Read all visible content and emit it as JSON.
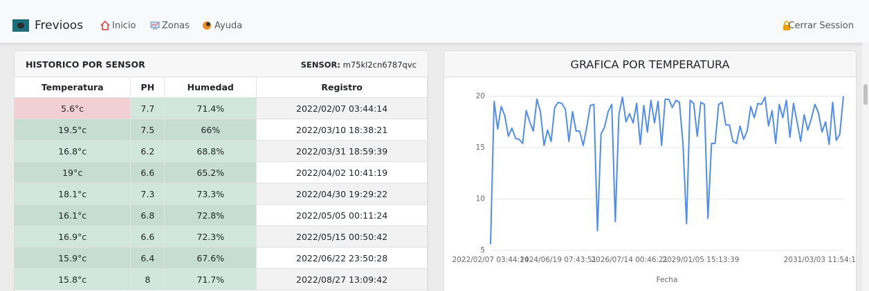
{
  "nav": {
    "brand": "Frevioos",
    "links": [
      "Inicio",
      "Zonas",
      "Ayuda"
    ],
    "logout": "Cerrar Session"
  },
  "panel": {
    "title": "HISTORICO POR SENSOR",
    "sensor_label": "SENSOR:",
    "sensor_id": "m75kl2cn6787qvc"
  },
  "table": {
    "headers": [
      "Temperatura",
      "PH",
      "Humedad",
      "Registro"
    ],
    "rows": [
      [
        "5.6°c",
        "7.7",
        "71.4%",
        "2022/02/07 03:44:14"
      ],
      [
        "19.5°c",
        "7.5",
        "66%",
        "2022/03/10 18:38:21"
      ],
      [
        "16.8°c",
        "6.2",
        "68.8%",
        "2022/03/31 18:59:39"
      ],
      [
        "19°c",
        "6.6",
        "65.2%",
        "2022/04/02 10:41:19"
      ],
      [
        "18.1°c",
        "7.3",
        "73.3%",
        "2022/04/30 19:29:22"
      ],
      [
        "16.1°c",
        "6.8",
        "72.8%",
        "2022/05/05 00:11:24"
      ],
      [
        "16.9°c",
        "6.6",
        "72.3%",
        "2022/05/15 00:50:42"
      ],
      [
        "15.9°c",
        "6.4",
        "67.6%",
        "2022/06/22 23:50:28"
      ],
      [
        "15.8°c",
        "8",
        "71.7%",
        "2022/08/27 13:09:42"
      ]
    ]
  },
  "chart_data": {
    "type": "line",
    "title": "GRAFICA POR TEMPERATURA",
    "x_label": "Fecha",
    "color": "#4e8cf0",
    "grid": true,
    "categories": [
      "2022/02/07 03:44:14",
      null,
      null,
      null,
      null,
      null,
      null,
      null,
      null,
      null,
      null,
      null,
      null,
      null,
      null,
      null,
      null,
      null,
      null,
      "2024/06/19 07:43:51",
      null,
      null,
      null,
      null,
      null,
      null,
      null,
      null,
      null,
      null,
      null,
      null,
      null,
      null,
      null,
      null,
      null,
      null,
      null,
      "2026/07/14 00:46:21",
      null,
      null,
      null,
      null,
      null,
      null,
      null,
      null,
      null,
      null,
      null,
      null,
      null,
      null,
      null,
      null,
      null,
      null,
      null,
      "2029/01/05 15:13:39",
      null,
      null,
      null,
      null,
      null,
      null,
      null,
      null,
      null,
      null,
      null,
      null,
      null,
      null,
      null,
      null,
      null,
      null,
      null,
      null,
      null,
      null,
      null,
      null,
      null,
      null,
      null,
      null,
      null,
      null,
      null,
      null,
      null,
      "2031/03/03 11:54:15",
      null,
      null,
      null,
      null,
      null,
      null
    ],
    "values": [
      5.6,
      19.5,
      16.8,
      19,
      18.1,
      16.1,
      16.9,
      15.9,
      15.8,
      15.4,
      18.6,
      17.5,
      16.6,
      19.7,
      18.5,
      15.2,
      16.7,
      15.6,
      18.9,
      19.4,
      19.3,
      18.7,
      15.6,
      18.5,
      16.6,
      16.6,
      15.2,
      17.0,
      19.1,
      19.2,
      6.9,
      16.3,
      17.0,
      18.5,
      19.2,
      7.8,
      18.2,
      19.9,
      17.5,
      18.3,
      17.4,
      19.3,
      15.3,
      19.1,
      16.5,
      19.6,
      17.4,
      19.5,
      15.2,
      19.7,
      19.7,
      18.9,
      19.6,
      19.4,
      15.3,
      7.6,
      19.6,
      19.3,
      16.1,
      19.4,
      19.2,
      8.1,
      15.4,
      15.4,
      19.2,
      19.4,
      17.2,
      17.2,
      15.6,
      15.4,
      17.1,
      15.8,
      16.6,
      19.0,
      17.9,
      19.3,
      19.2,
      19.9,
      17.1,
      18.6,
      15.4,
      19.2,
      17.9,
      19.6,
      16.0,
      19.3,
      17.5,
      15.6,
      18.2,
      16.7,
      17.8,
      19.2,
      18.4,
      16.5,
      17.5,
      15.3,
      19.4,
      15.7,
      16.3,
      20.0
    ],
    "ylim": [
      5,
      20.5
    ],
    "yticks": [
      5,
      10,
      15,
      20
    ]
  }
}
